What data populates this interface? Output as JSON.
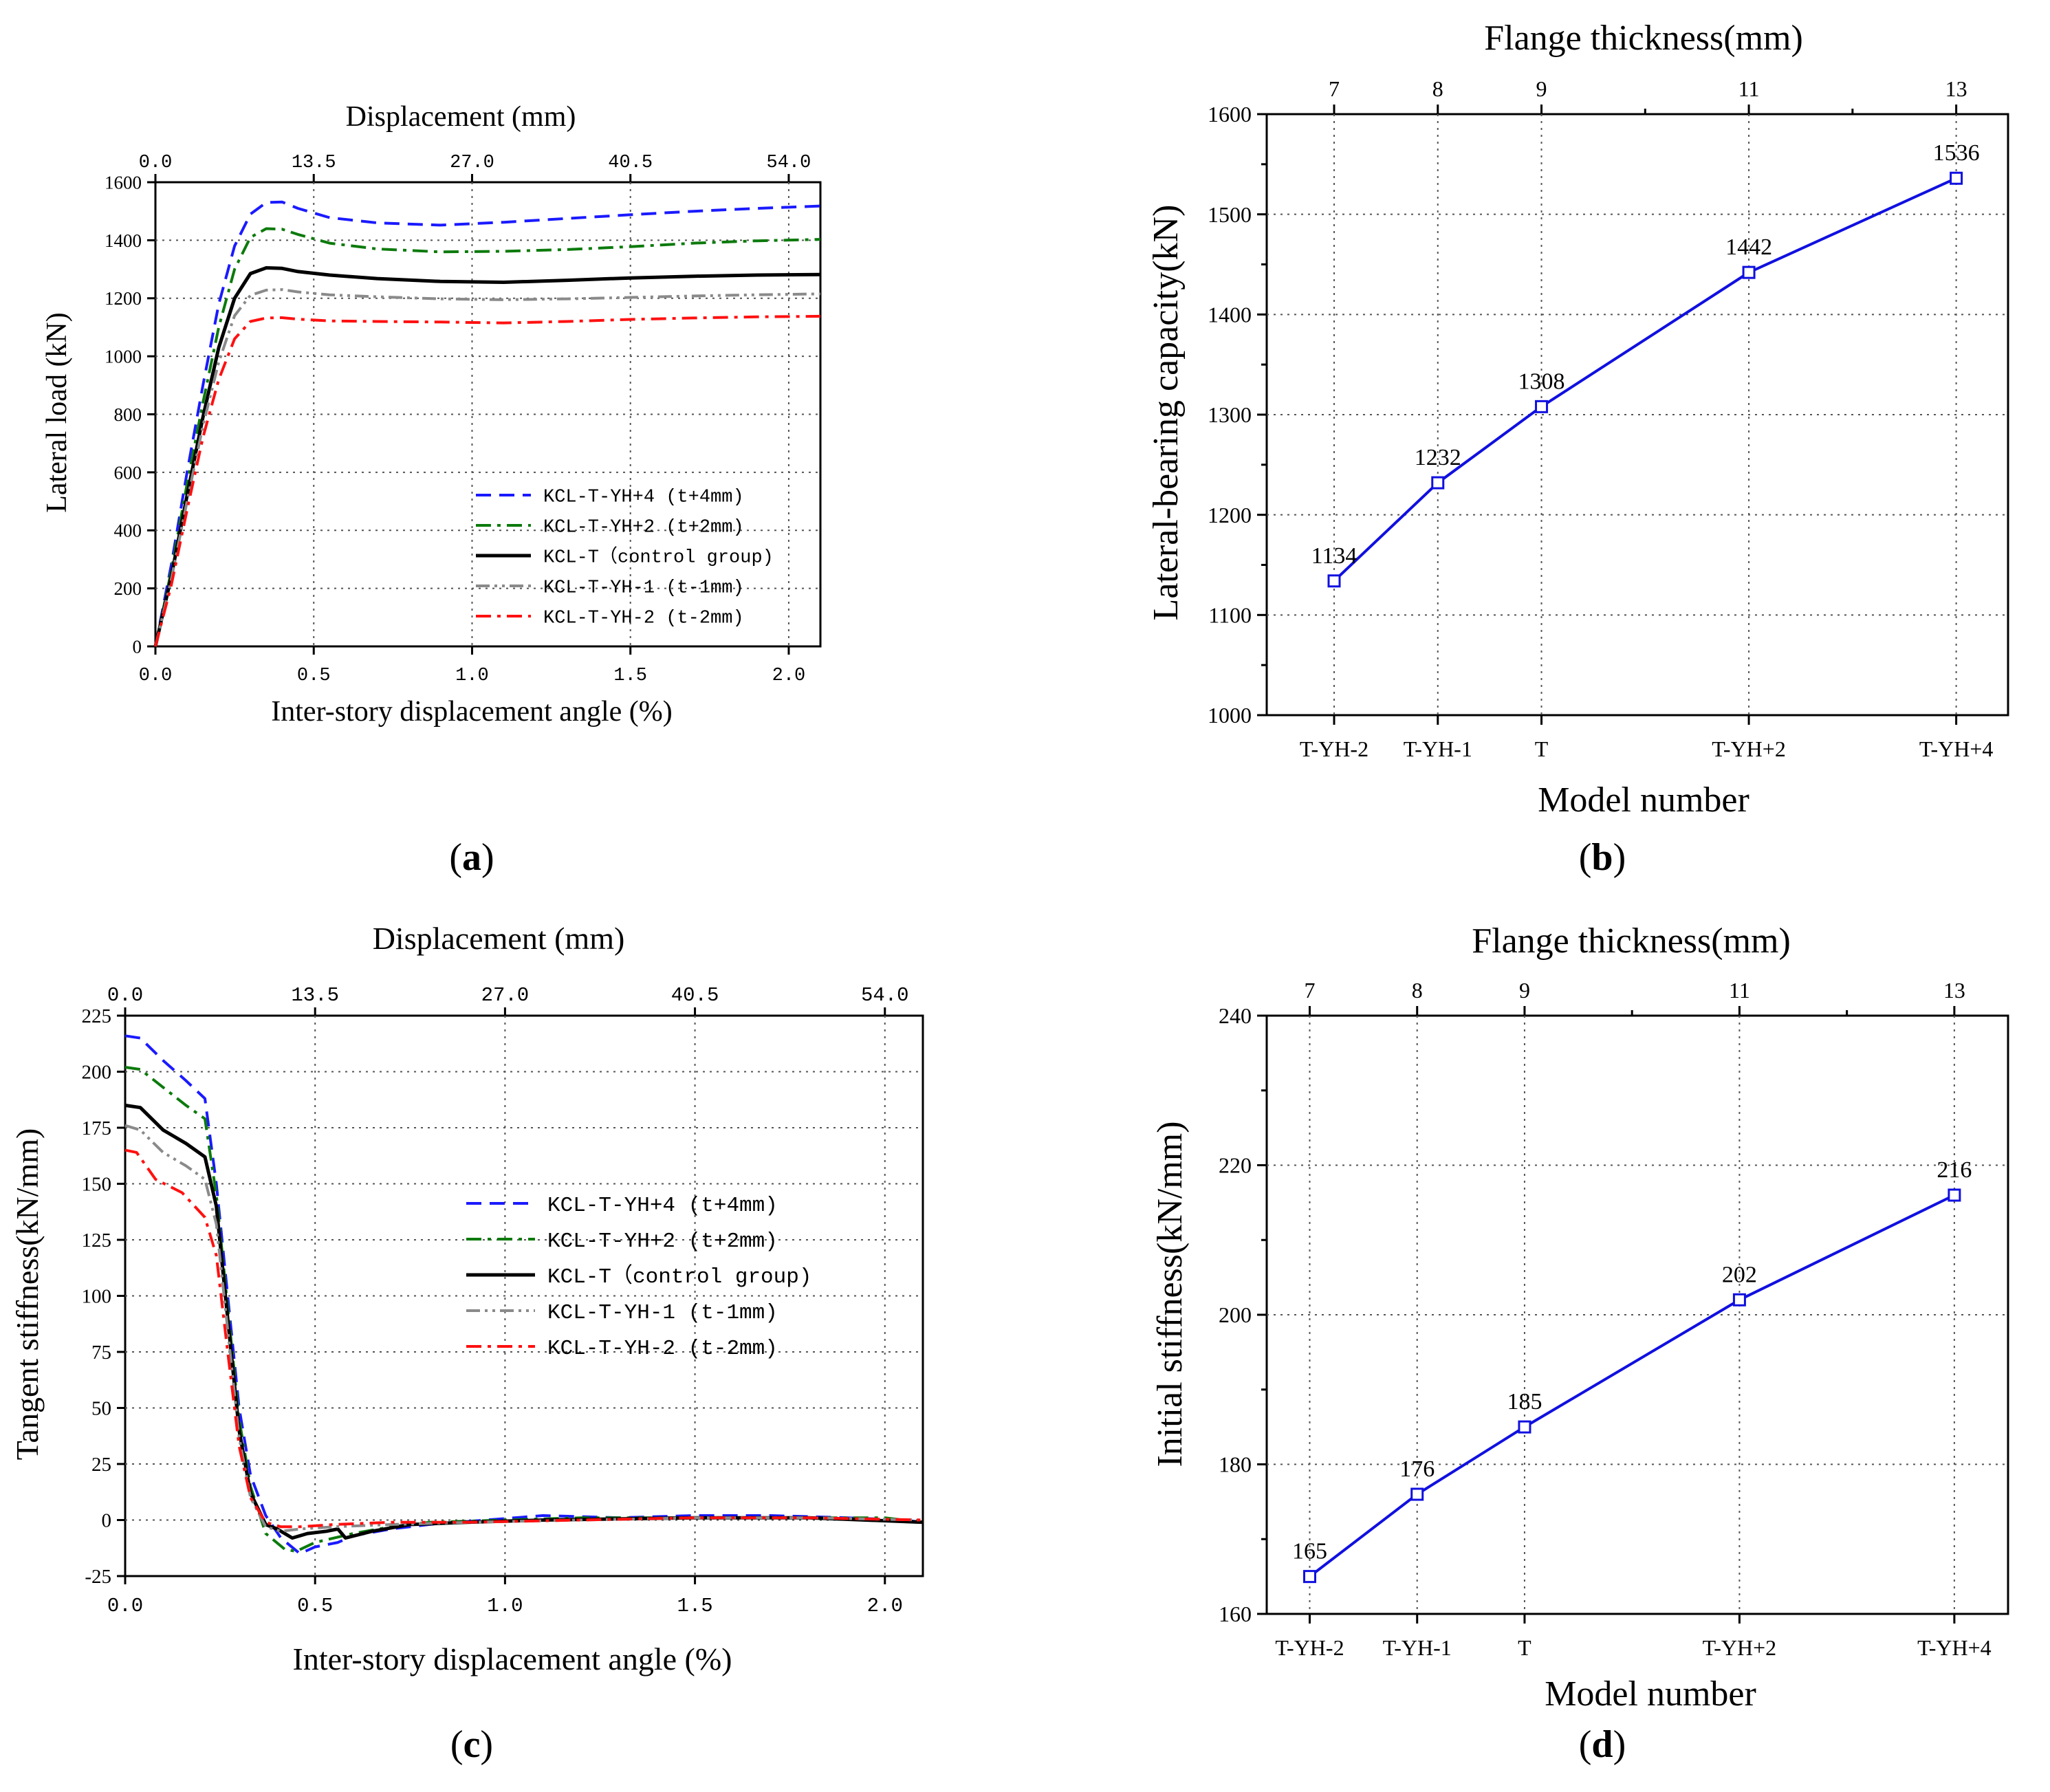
{
  "colors": {
    "blue": "#1a1aff",
    "green": "#0c7a0c",
    "black": "#000000",
    "gray": "#8a8a8a",
    "red": "#ff1010",
    "markerLine": "#1010e0",
    "grid": "#555555"
  },
  "chart_data": [
    {
      "id": "a",
      "type": "line",
      "panel_label": "(a)",
      "panel_label_parts": [
        "(",
        "a",
        ")"
      ],
      "top_axis_title": "Displacement (mm)",
      "top_ticks": [
        "0.0",
        "13.5",
        "27.0",
        "40.5",
        "54.0"
      ],
      "top_tick_values": [
        0,
        0.5,
        1.0,
        1.5,
        2.0
      ],
      "xlabel": "Inter-story displacement angle (%)",
      "ylabel": "Lateral load (kN)",
      "xlim": [
        0,
        2.1
      ],
      "ylim": [
        0,
        1600
      ],
      "xticks": [
        0.0,
        0.5,
        1.0,
        1.5,
        2.0
      ],
      "xtick_labels": [
        "0.0",
        "0.5",
        "1.0",
        "1.5",
        "2.0"
      ],
      "yticks": [
        0,
        200,
        400,
        600,
        800,
        1000,
        1200,
        1400,
        1600
      ],
      "ytick_labels": [
        "0",
        "200",
        "400",
        "600",
        "800",
        "1000",
        "1200",
        "1400",
        "1600"
      ],
      "legend_position": "lower-right",
      "series": [
        {
          "name": "KCL-T-YH+4 (t+4mm)",
          "color": "blue",
          "dash": "dash",
          "points": [
            [
              0,
              0
            ],
            [
              0.05,
              280
            ],
            [
              0.1,
              600
            ],
            [
              0.15,
              900
            ],
            [
              0.2,
              1180
            ],
            [
              0.25,
              1380
            ],
            [
              0.3,
              1490
            ],
            [
              0.35,
              1530
            ],
            [
              0.4,
              1532
            ],
            [
              0.45,
              1510
            ],
            [
              0.55,
              1478
            ],
            [
              0.7,
              1460
            ],
            [
              0.9,
              1452
            ],
            [
              1.1,
              1462
            ],
            [
              1.3,
              1475
            ],
            [
              1.5,
              1488
            ],
            [
              1.7,
              1500
            ],
            [
              1.9,
              1510
            ],
            [
              2.1,
              1518
            ]
          ]
        },
        {
          "name": "KCL-T-YH+2 (t+2mm)",
          "color": "green",
          "dash": "dashdot",
          "points": [
            [
              0,
              0
            ],
            [
              0.05,
              260
            ],
            [
              0.1,
              560
            ],
            [
              0.15,
              840
            ],
            [
              0.2,
              1100
            ],
            [
              0.25,
              1300
            ],
            [
              0.3,
              1410
            ],
            [
              0.35,
              1440
            ],
            [
              0.4,
              1438
            ],
            [
              0.45,
              1420
            ],
            [
              0.55,
              1390
            ],
            [
              0.7,
              1370
            ],
            [
              0.9,
              1360
            ],
            [
              1.1,
              1362
            ],
            [
              1.3,
              1368
            ],
            [
              1.5,
              1378
            ],
            [
              1.7,
              1390
            ],
            [
              1.9,
              1398
            ],
            [
              2.1,
              1403
            ]
          ]
        },
        {
          "name": "KCL-T（control group)",
          "color": "black",
          "dash": "solid",
          "points": [
            [
              0,
              0
            ],
            [
              0.05,
              240
            ],
            [
              0.1,
              520
            ],
            [
              0.15,
              790
            ],
            [
              0.2,
              1030
            ],
            [
              0.25,
              1200
            ],
            [
              0.3,
              1285
            ],
            [
              0.35,
              1305
            ],
            [
              0.4,
              1303
            ],
            [
              0.45,
              1292
            ],
            [
              0.55,
              1280
            ],
            [
              0.7,
              1268
            ],
            [
              0.9,
              1258
            ],
            [
              1.1,
              1255
            ],
            [
              1.3,
              1262
            ],
            [
              1.5,
              1270
            ],
            [
              1.7,
              1276
            ],
            [
              1.9,
              1280
            ],
            [
              2.1,
              1282
            ]
          ]
        },
        {
          "name": "KCL-T-YH-1 (t-1mm)",
          "color": "gray",
          "dash": "dashdotdot",
          "points": [
            [
              0,
              0
            ],
            [
              0.05,
              230
            ],
            [
              0.1,
              500
            ],
            [
              0.15,
              760
            ],
            [
              0.2,
              980
            ],
            [
              0.25,
              1140
            ],
            [
              0.3,
              1210
            ],
            [
              0.35,
              1228
            ],
            [
              0.4,
              1230
            ],
            [
              0.45,
              1222
            ],
            [
              0.55,
              1212
            ],
            [
              0.7,
              1205
            ],
            [
              0.9,
              1198
            ],
            [
              1.1,
              1195
            ],
            [
              1.3,
              1198
            ],
            [
              1.5,
              1203
            ],
            [
              1.7,
              1208
            ],
            [
              1.9,
              1212
            ],
            [
              2.1,
              1215
            ]
          ]
        },
        {
          "name": "KCL-T-YH-2 (t-2mm)",
          "color": "red",
          "dash": "dashdot",
          "points": [
            [
              0,
              0
            ],
            [
              0.05,
              210
            ],
            [
              0.1,
              470
            ],
            [
              0.15,
              720
            ],
            [
              0.2,
              920
            ],
            [
              0.25,
              1060
            ],
            [
              0.3,
              1120
            ],
            [
              0.35,
              1132
            ],
            [
              0.4,
              1133
            ],
            [
              0.45,
              1128
            ],
            [
              0.55,
              1122
            ],
            [
              0.7,
              1120
            ],
            [
              0.9,
              1118
            ],
            [
              1.1,
              1115
            ],
            [
              1.3,
              1120
            ],
            [
              1.5,
              1127
            ],
            [
              1.7,
              1132
            ],
            [
              1.9,
              1136
            ],
            [
              2.1,
              1138
            ]
          ]
        }
      ]
    },
    {
      "id": "b",
      "type": "line",
      "panel_label": "(b)",
      "panel_label_parts": [
        "(",
        "b",
        ")"
      ],
      "top_axis_title": "Flange thickness(mm)",
      "top_ticks": [
        "7",
        "8",
        "9",
        "11",
        "13"
      ],
      "xlabel": "Model number",
      "ylabel": "Lateral-bearing capacity(kN)",
      "ylim": [
        1000,
        1600
      ],
      "yticks": [
        1000,
        1100,
        1200,
        1300,
        1400,
        1500,
        1600
      ],
      "ytick_labels": [
        "1000",
        "1100",
        "1200",
        "1300",
        "1400",
        "1500",
        "1600"
      ],
      "categories": [
        "T-YH-2",
        "T-YH-1",
        "T",
        "T-YH+2",
        "T-YH+4"
      ],
      "x_positions": [
        7,
        8,
        9,
        11,
        13
      ],
      "xlim": [
        6.35,
        13.5
      ],
      "values": [
        1134,
        1232,
        1308,
        1442,
        1536
      ],
      "data_labels": [
        "1134",
        "1232",
        "1308",
        "1442",
        "1536"
      ]
    },
    {
      "id": "c",
      "type": "line",
      "panel_label": "(c)",
      "panel_label_parts": [
        "(",
        "c",
        ")"
      ],
      "top_axis_title": "Displacement (mm)",
      "top_ticks": [
        "0.0",
        "13.5",
        "27.0",
        "40.5",
        "54.0"
      ],
      "top_tick_values": [
        0,
        0.5,
        1.0,
        1.5,
        2.0
      ],
      "xlabel": "Inter-story displacement angle (%)",
      "ylabel": "Tangent stiffness(kN/mm)",
      "xlim": [
        0,
        2.1
      ],
      "ylim": [
        -25,
        225
      ],
      "xticks": [
        0.0,
        0.5,
        1.0,
        1.5,
        2.0
      ],
      "xtick_labels": [
        "0.0",
        "0.5",
        "1.0",
        "1.5",
        "2.0"
      ],
      "yticks": [
        -25,
        0,
        25,
        50,
        75,
        100,
        125,
        150,
        175,
        200,
        225
      ],
      "ytick_labels": [
        "-25",
        "0",
        "25",
        "50",
        "75",
        "100",
        "125",
        "150",
        "175",
        "200",
        "225"
      ],
      "legend_position": "center-right",
      "series": [
        {
          "name": "KCL-T-YH+4 (t+4mm)",
          "color": "blue",
          "dash": "dash",
          "points": [
            [
              0,
              216
            ],
            [
              0.04,
              215
            ],
            [
              0.1,
              205
            ],
            [
              0.16,
              196
            ],
            [
              0.21,
              188
            ],
            [
              0.24,
              150
            ],
            [
              0.27,
              100
            ],
            [
              0.3,
              50
            ],
            [
              0.33,
              20
            ],
            [
              0.37,
              2
            ],
            [
              0.41,
              -8
            ],
            [
              0.46,
              -15
            ],
            [
              0.5,
              -12
            ],
            [
              0.56,
              -10
            ],
            [
              0.6,
              -7
            ],
            [
              0.7,
              -4
            ],
            [
              0.8,
              -2
            ],
            [
              0.95,
              0
            ],
            [
              1.1,
              2
            ],
            [
              1.3,
              1
            ],
            [
              1.5,
              2
            ],
            [
              1.7,
              2
            ],
            [
              1.9,
              1
            ],
            [
              2.05,
              0
            ],
            [
              2.1,
              -1
            ]
          ]
        },
        {
          "name": "KCL-T-YH+2 (t+2mm)",
          "color": "green",
          "dash": "dashdot",
          "points": [
            [
              0,
              202
            ],
            [
              0.04,
              201
            ],
            [
              0.1,
              193
            ],
            [
              0.16,
              185
            ],
            [
              0.21,
              179
            ],
            [
              0.24,
              145
            ],
            [
              0.27,
              95
            ],
            [
              0.3,
              45
            ],
            [
              0.33,
              15
            ],
            [
              0.37,
              -6
            ],
            [
              0.42,
              -13
            ],
            [
              0.45,
              -14
            ],
            [
              0.5,
              -10
            ],
            [
              0.6,
              -6
            ],
            [
              0.7,
              -3
            ],
            [
              0.8,
              -1
            ],
            [
              1.0,
              0
            ],
            [
              1.2,
              1
            ],
            [
              1.5,
              1
            ],
            [
              1.8,
              1
            ],
            [
              2.0,
              1
            ],
            [
              2.1,
              -1
            ]
          ]
        },
        {
          "name": "KCL-T（control group)",
          "color": "black",
          "dash": "solid",
          "points": [
            [
              0,
              185
            ],
            [
              0.04,
              184
            ],
            [
              0.1,
              174
            ],
            [
              0.16,
              168
            ],
            [
              0.21,
              162
            ],
            [
              0.24,
              140
            ],
            [
              0.27,
              90
            ],
            [
              0.3,
              40
            ],
            [
              0.33,
              12
            ],
            [
              0.37,
              -2
            ],
            [
              0.4,
              -4
            ],
            [
              0.44,
              -8
            ],
            [
              0.48,
              -6
            ],
            [
              0.53,
              -5
            ],
            [
              0.56,
              -4
            ],
            [
              0.58,
              -8
            ],
            [
              0.65,
              -5
            ],
            [
              0.75,
              -2
            ],
            [
              0.9,
              -1
            ],
            [
              1.1,
              0
            ],
            [
              1.5,
              1
            ],
            [
              1.8,
              1
            ],
            [
              2.1,
              -1
            ]
          ]
        },
        {
          "name": "KCL-T-YH-1 (t-1mm)",
          "color": "gray",
          "dash": "dashdotdot",
          "points": [
            [
              0,
              176
            ],
            [
              0.04,
              174
            ],
            [
              0.1,
              164
            ],
            [
              0.16,
              158
            ],
            [
              0.21,
              152
            ],
            [
              0.24,
              132
            ],
            [
              0.27,
              85
            ],
            [
              0.3,
              37
            ],
            [
              0.33,
              10
            ],
            [
              0.37,
              -3
            ],
            [
              0.41,
              -5
            ],
            [
              0.46,
              -4
            ],
            [
              0.55,
              -3
            ],
            [
              0.7,
              -2
            ],
            [
              0.9,
              -1
            ],
            [
              1.2,
              0
            ],
            [
              1.5,
              1
            ],
            [
              1.8,
              1
            ],
            [
              2.1,
              0
            ]
          ]
        },
        {
          "name": "KCL-T-YH-2 (t-2mm)",
          "color": "red",
          "dash": "dashdot",
          "points": [
            [
              0,
              165
            ],
            [
              0.03,
              164
            ],
            [
              0.08,
              152
            ],
            [
              0.15,
              146
            ],
            [
              0.21,
              135
            ],
            [
              0.24,
              118
            ],
            [
              0.27,
              75
            ],
            [
              0.3,
              33
            ],
            [
              0.33,
              10
            ],
            [
              0.37,
              -1
            ],
            [
              0.41,
              -3
            ],
            [
              0.46,
              -3
            ],
            [
              0.55,
              -2
            ],
            [
              0.7,
              -1
            ],
            [
              0.9,
              -1
            ],
            [
              1.2,
              0
            ],
            [
              1.5,
              1
            ],
            [
              1.8,
              1
            ],
            [
              2.1,
              0
            ]
          ]
        }
      ]
    },
    {
      "id": "d",
      "type": "line",
      "panel_label": "(d)",
      "panel_label_parts": [
        "(",
        "d",
        ")"
      ],
      "top_axis_title": "Flange thickness(mm)",
      "top_ticks": [
        "7",
        "8",
        "9",
        "11",
        "13"
      ],
      "xlabel": "Model number",
      "ylabel": "Initial stiffness(kN/mm)",
      "ylim": [
        160,
        240
      ],
      "yticks": [
        160,
        180,
        200,
        220,
        240
      ],
      "ytick_labels": [
        "160",
        "180",
        "200",
        "220",
        "240"
      ],
      "categories": [
        "T-YH-2",
        "T-YH-1",
        "T",
        "T-YH+2",
        "T-YH+4"
      ],
      "x_positions": [
        7,
        8,
        9,
        11,
        13
      ],
      "xlim": [
        6.6,
        13.5
      ],
      "values": [
        165,
        176,
        185,
        202,
        216
      ],
      "data_labels": [
        "165",
        "176",
        "185",
        "202",
        "216"
      ]
    }
  ]
}
